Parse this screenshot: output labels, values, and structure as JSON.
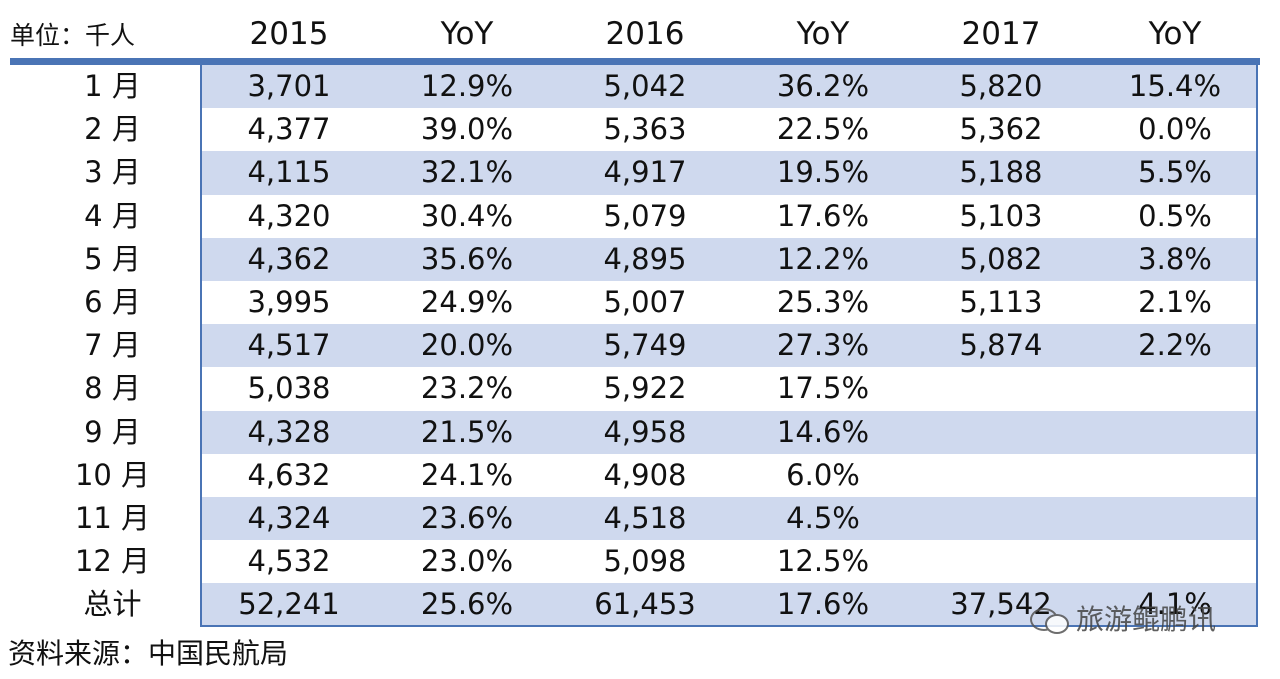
{
  "header": {
    "unit": "单位：千人",
    "columns": [
      "2015",
      "YoY",
      "2016",
      "YoY",
      "2017",
      "YoY"
    ]
  },
  "rows": [
    {
      "label": "1 月",
      "values": [
        "3,701",
        "12.9%",
        "5,042",
        "36.2%",
        "5,820",
        "15.4%"
      ]
    },
    {
      "label": "2 月",
      "values": [
        "4,377",
        "39.0%",
        "5,363",
        "22.5%",
        "5,362",
        "0.0%"
      ]
    },
    {
      "label": "3 月",
      "values": [
        "4,115",
        "32.1%",
        "4,917",
        "19.5%",
        "5,188",
        "5.5%"
      ]
    },
    {
      "label": "4 月",
      "values": [
        "4,320",
        "30.4%",
        "5,079",
        "17.6%",
        "5,103",
        "0.5%"
      ]
    },
    {
      "label": "5 月",
      "values": [
        "4,362",
        "35.6%",
        "4,895",
        "12.2%",
        "5,082",
        "3.8%"
      ]
    },
    {
      "label": "6 月",
      "values": [
        "3,995",
        "24.9%",
        "5,007",
        "25.3%",
        "5,113",
        "2.1%"
      ]
    },
    {
      "label": "7 月",
      "values": [
        "4,517",
        "20.0%",
        "5,749",
        "27.3%",
        "5,874",
        "2.2%"
      ]
    },
    {
      "label": "8 月",
      "values": [
        "5,038",
        "23.2%",
        "5,922",
        "17.5%",
        "",
        ""
      ]
    },
    {
      "label": "9 月",
      "values": [
        "4,328",
        "21.5%",
        "4,958",
        "14.6%",
        "",
        ""
      ]
    },
    {
      "label": "10 月",
      "values": [
        "4,632",
        "24.1%",
        "4,908",
        "6.0%",
        "",
        ""
      ]
    },
    {
      "label": "11 月",
      "values": [
        "4,324",
        "23.6%",
        "4,518",
        "4.5%",
        "",
        ""
      ]
    },
    {
      "label": "12 月",
      "values": [
        "4,532",
        "23.0%",
        "5,098",
        "12.5%",
        "",
        ""
      ]
    },
    {
      "label": "总计",
      "values": [
        "52,241",
        "25.6%",
        "61,453",
        "17.6%",
        "37,542",
        "4.1%"
      ]
    }
  ],
  "source": "资料来源：中国民航局",
  "watermark": "旅游鲲鹏讯",
  "colors": {
    "accent": "#4a74b5",
    "stripe": "#cfd9ee"
  }
}
